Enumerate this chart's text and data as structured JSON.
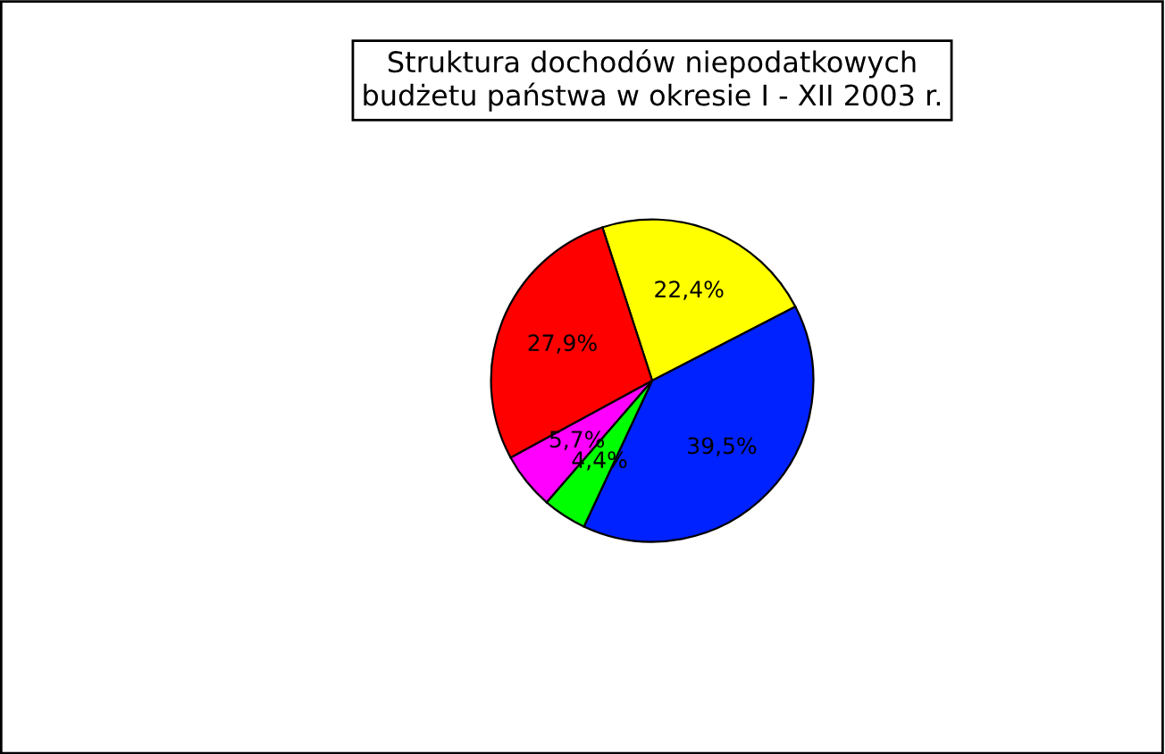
{
  "chart_data": {
    "type": "pie",
    "title": "Struktura dochodów niepodatkowych\nbudżetu państwa w okresie I - XII 2003 r.",
    "categories": [
      null,
      null,
      null,
      null,
      null
    ],
    "values": [
      22.4,
      39.5,
      4.4,
      5.7,
      27.9
    ],
    "colors": [
      "#ffff00",
      "#0022ff",
      "#00ff00",
      "#ff00ff",
      "#ff0000"
    ],
    "value_labels": [
      "22,4%",
      "39,5%",
      "4,4%",
      "5,7%",
      "27,9%"
    ],
    "legend": false
  }
}
